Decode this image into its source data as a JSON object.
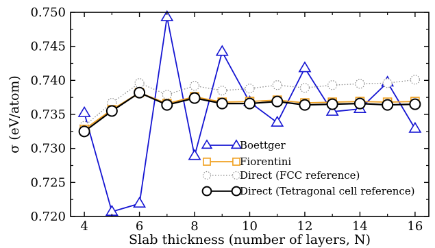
{
  "chart_data": {
    "type": "line",
    "title": "",
    "xlabel": "Slab thickness (number of layers, N)",
    "ylabel": "σ (eV/atom)",
    "xlim": [
      3.5,
      16.5
    ],
    "ylim": [
      0.72,
      0.75
    ],
    "xticks": [
      4,
      6,
      8,
      10,
      12,
      14,
      16
    ],
    "xtick_labels": [
      "4",
      "6",
      "8",
      "10",
      "12",
      "14",
      "16"
    ],
    "yticks": [
      0.72,
      0.725,
      0.73,
      0.735,
      0.74,
      0.745,
      0.75
    ],
    "ytick_labels": [
      "0.720",
      "0.725",
      "0.730",
      "0.735",
      "0.740",
      "0.745",
      "0.750"
    ],
    "grid": false,
    "legend_position": "bottom-right",
    "x": [
      4,
      5,
      6,
      7,
      8,
      9,
      10,
      11,
      12,
      13,
      14,
      15,
      16
    ],
    "series": [
      {
        "name": "Boettger",
        "color": "#1414d2",
        "marker": "triangle",
        "line": "solid",
        "values": [
          0.7352,
          0.7207,
          0.7219,
          0.7493,
          0.7289,
          0.7442,
          0.7368,
          0.7338,
          0.7418,
          0.7354,
          0.7358,
          0.7397,
          0.7329
        ]
      },
      {
        "name": "Fiorentini",
        "color": "#f0a020",
        "marker": "square",
        "line": "solid",
        "values": [
          0.7328,
          0.7357,
          0.7382,
          0.7366,
          0.7376,
          0.7368,
          0.7369,
          0.7371,
          0.7367,
          0.7368,
          0.7369,
          0.7368,
          0.7369
        ]
      },
      {
        "name": "Direct (FCC reference)",
        "color": "#8a8a8a",
        "marker": "circle-open-dotted",
        "line": "dotted",
        "values": [
          0.7333,
          0.7367,
          0.7396,
          0.7379,
          0.7392,
          0.7385,
          0.7388,
          0.7393,
          0.7389,
          0.7393,
          0.7395,
          0.7396,
          0.7401
        ]
      },
      {
        "name": "Direct (Tetragonal cell reference)",
        "color": "#000000",
        "marker": "circle",
        "line": "solid",
        "values": [
          0.7325,
          0.7355,
          0.7382,
          0.7364,
          0.7374,
          0.7366,
          0.7366,
          0.7369,
          0.7364,
          0.7365,
          0.7366,
          0.7364,
          0.7365
        ]
      }
    ]
  }
}
